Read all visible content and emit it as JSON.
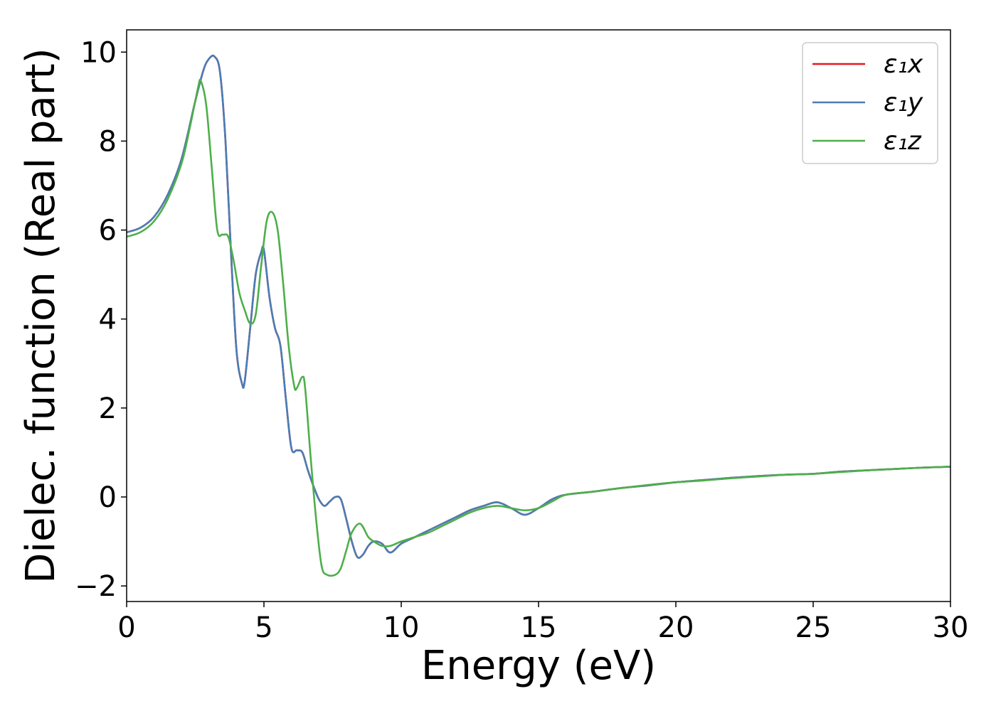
{
  "chart_data": {
    "type": "line",
    "title": "",
    "xlabel": "Energy (eV)",
    "ylabel": "Dielec. function (Real part)",
    "xlim": [
      0,
      30
    ],
    "ylim": [
      -2.35,
      10.5
    ],
    "xticks": [
      0,
      5,
      10,
      15,
      20,
      25,
      30
    ],
    "xtick_labels": [
      "0",
      "5",
      "10",
      "15",
      "20",
      "25",
      "30"
    ],
    "yticks": [
      -2,
      0,
      2,
      4,
      6,
      8,
      10
    ],
    "ytick_labels": [
      "−2",
      "0",
      "2",
      "4",
      "6",
      "8",
      "10"
    ],
    "grid": false,
    "legend_position": "top-right",
    "series": [
      {
        "name": "ε₁x",
        "color": "#e41a1c",
        "x": [
          0,
          0.5,
          1.0,
          1.5,
          2.0,
          2.5,
          2.8,
          3.0,
          3.2,
          3.4,
          3.6,
          3.8,
          4.0,
          4.2,
          4.3,
          4.5,
          4.7,
          4.9,
          5.0,
          5.2,
          5.4,
          5.6,
          5.8,
          6.0,
          6.2,
          6.4,
          6.6,
          6.8,
          7.0,
          7.2,
          7.4,
          7.6,
          7.8,
          8.0,
          8.2,
          8.4,
          8.6,
          8.8,
          9.0,
          9.3,
          9.6,
          10.0,
          10.5,
          11.0,
          11.5,
          12.0,
          12.5,
          13.0,
          13.5,
          14.0,
          14.5,
          15.0,
          15.5,
          16.0,
          17.0,
          18.0,
          19.0,
          20.0,
          21.0,
          22.0,
          23.0,
          24.0,
          25.0,
          26.0,
          27.0,
          28.0,
          29.0,
          30.0
        ],
        "values": [
          5.95,
          6.05,
          6.3,
          6.8,
          7.6,
          8.9,
          9.6,
          9.85,
          9.9,
          9.55,
          8.0,
          5.5,
          3.3,
          2.55,
          2.6,
          3.8,
          5.0,
          5.5,
          5.55,
          4.5,
          3.8,
          3.4,
          2.2,
          1.1,
          1.05,
          1.0,
          0.6,
          0.25,
          -0.05,
          -0.2,
          -0.1,
          0.0,
          -0.05,
          -0.5,
          -1.0,
          -1.35,
          -1.3,
          -1.1,
          -1.0,
          -1.05,
          -1.25,
          -1.05,
          -0.9,
          -0.75,
          -0.6,
          -0.45,
          -0.3,
          -0.2,
          -0.12,
          -0.25,
          -0.4,
          -0.25,
          -0.05,
          0.05,
          0.12,
          0.2,
          0.26,
          0.33,
          0.38,
          0.43,
          0.47,
          0.5,
          0.52,
          0.57,
          0.6,
          0.63,
          0.66,
          0.68
        ]
      },
      {
        "name": "ε₁y",
        "color": "#4a7db5",
        "x": [
          0,
          0.5,
          1.0,
          1.5,
          2.0,
          2.5,
          2.8,
          3.0,
          3.2,
          3.4,
          3.6,
          3.8,
          4.0,
          4.2,
          4.3,
          4.5,
          4.7,
          4.9,
          5.0,
          5.2,
          5.4,
          5.6,
          5.8,
          6.0,
          6.2,
          6.4,
          6.6,
          6.8,
          7.0,
          7.2,
          7.4,
          7.6,
          7.8,
          8.0,
          8.2,
          8.4,
          8.6,
          8.8,
          9.0,
          9.3,
          9.6,
          10.0,
          10.5,
          11.0,
          11.5,
          12.0,
          12.5,
          13.0,
          13.5,
          14.0,
          14.5,
          15.0,
          15.5,
          16.0,
          17.0,
          18.0,
          19.0,
          20.0,
          21.0,
          22.0,
          23.0,
          24.0,
          25.0,
          26.0,
          27.0,
          28.0,
          29.0,
          30.0
        ],
        "values": [
          5.95,
          6.05,
          6.3,
          6.8,
          7.6,
          8.9,
          9.6,
          9.85,
          9.9,
          9.55,
          8.0,
          5.5,
          3.3,
          2.55,
          2.6,
          3.8,
          5.0,
          5.5,
          5.55,
          4.5,
          3.8,
          3.4,
          2.2,
          1.1,
          1.05,
          1.0,
          0.6,
          0.25,
          -0.05,
          -0.2,
          -0.1,
          0.0,
          -0.05,
          -0.5,
          -1.0,
          -1.35,
          -1.3,
          -1.1,
          -1.0,
          -1.05,
          -1.25,
          -1.05,
          -0.9,
          -0.75,
          -0.6,
          -0.45,
          -0.3,
          -0.2,
          -0.12,
          -0.25,
          -0.4,
          -0.25,
          -0.05,
          0.05,
          0.12,
          0.2,
          0.26,
          0.33,
          0.38,
          0.43,
          0.47,
          0.5,
          0.52,
          0.57,
          0.6,
          0.63,
          0.66,
          0.68
        ]
      },
      {
        "name": "ε₁z",
        "color": "#4daf4a",
        "x": [
          0,
          0.5,
          1.0,
          1.5,
          2.0,
          2.3,
          2.6,
          2.7,
          2.9,
          3.1,
          3.3,
          3.5,
          3.7,
          3.9,
          4.1,
          4.3,
          4.5,
          4.7,
          4.9,
          5.1,
          5.3,
          5.5,
          5.7,
          5.9,
          6.1,
          6.2,
          6.4,
          6.5,
          6.7,
          6.9,
          7.1,
          7.3,
          7.6,
          7.8,
          8.0,
          8.2,
          8.5,
          8.8,
          9.0,
          9.3,
          9.6,
          10.0,
          10.5,
          11.0,
          11.5,
          12.0,
          12.5,
          13.0,
          13.5,
          14.0,
          14.5,
          15.0,
          15.5,
          16.0,
          17.0,
          18.0,
          19.0,
          20.0,
          21.0,
          22.0,
          23.0,
          24.0,
          25.0,
          26.0,
          27.0,
          28.0,
          29.0,
          30.0
        ],
        "values": [
          5.85,
          5.95,
          6.2,
          6.7,
          7.5,
          8.3,
          9.2,
          9.35,
          8.8,
          7.4,
          6.0,
          5.9,
          5.85,
          5.3,
          4.6,
          4.2,
          3.9,
          4.1,
          5.2,
          6.2,
          6.4,
          6.0,
          4.8,
          3.4,
          2.5,
          2.45,
          2.7,
          2.45,
          0.9,
          -0.5,
          -1.55,
          -1.75,
          -1.75,
          -1.6,
          -1.2,
          -0.8,
          -0.6,
          -0.9,
          -1.0,
          -1.1,
          -1.1,
          -1.0,
          -0.9,
          -0.8,
          -0.65,
          -0.5,
          -0.35,
          -0.25,
          -0.2,
          -0.25,
          -0.3,
          -0.25,
          -0.1,
          0.05,
          0.12,
          0.2,
          0.27,
          0.33,
          0.37,
          0.42,
          0.46,
          0.5,
          0.52,
          0.56,
          0.6,
          0.63,
          0.66,
          0.68
        ]
      }
    ]
  }
}
